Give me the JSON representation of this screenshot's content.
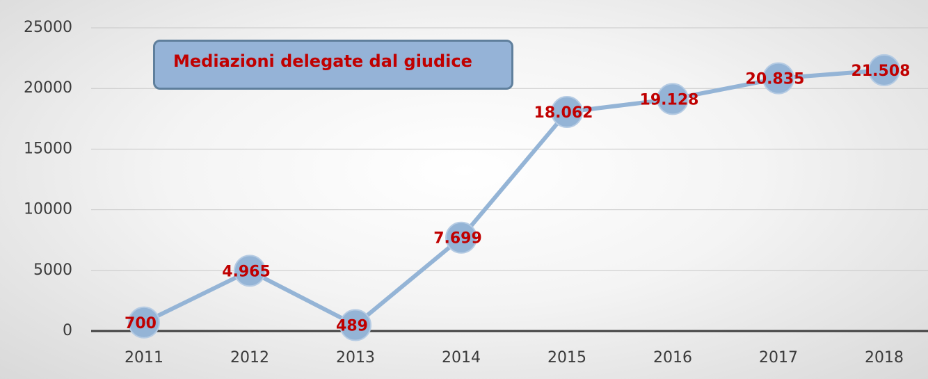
{
  "chart_data": {
    "type": "line",
    "title": "Mediazioni delegate dal giudice",
    "categories": [
      "2011",
      "2012",
      "2013",
      "2014",
      "2015",
      "2016",
      "2017",
      "2018"
    ],
    "series": [
      {
        "color": "#94b4d6",
        "values": [
          700,
          4965,
          489,
          7699,
          18062,
          19128,
          20835,
          21508
        ],
        "value_labels": [
          "700",
          "4.965",
          "489",
          "7.699",
          "18.062",
          "19.128",
          "20.835",
          "21.508"
        ]
      }
    ],
    "ylim": [
      0,
      25000
    ],
    "yticks": [
      0,
      5000,
      10000,
      15000,
      20000,
      25000
    ],
    "grid": true
  }
}
